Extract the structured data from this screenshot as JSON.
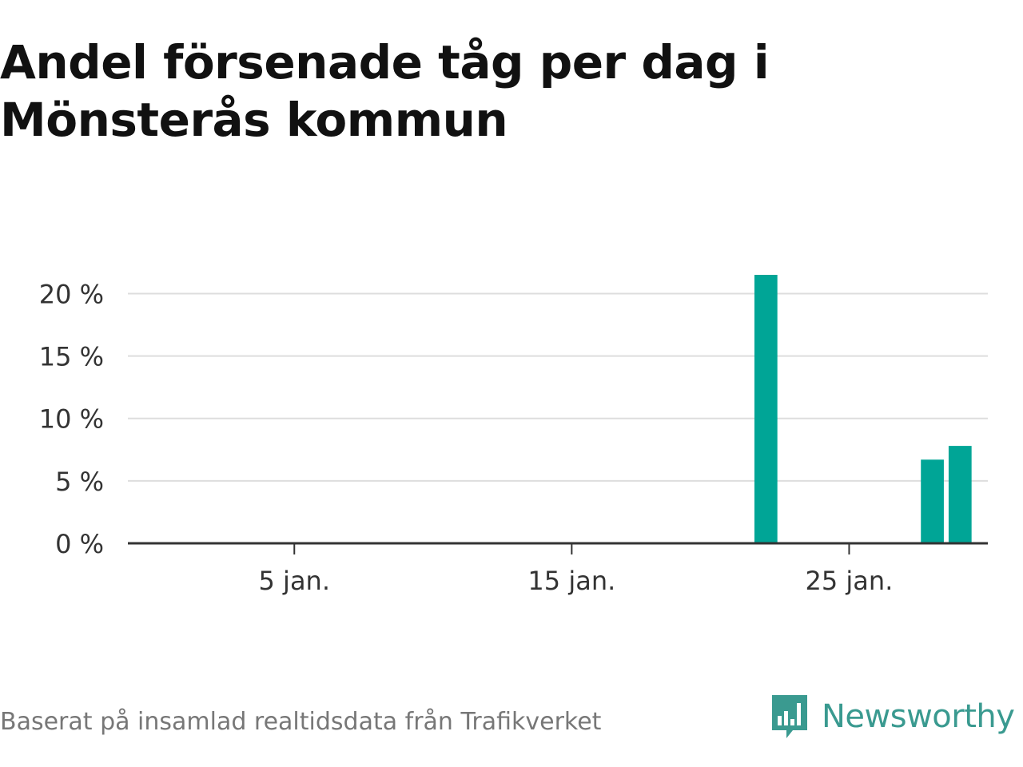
{
  "title_line1": "Andel försenade tåg per dag i",
  "title_line2": "Mönsterås kommun",
  "source": "Baserat på insamlad realtidsdata från Trafikverket",
  "brand": {
    "name": "Newsworthy",
    "icon": "newsworthy-logo-icon",
    "color": "#3a9a90"
  },
  "chart_data": {
    "type": "bar",
    "x_unit": "day of January",
    "x_ticks": [
      5,
      15,
      25
    ],
    "x_tick_labels": [
      "5 jan.",
      "15 jan.",
      "25 jan."
    ],
    "xlim": [
      -1,
      30
    ],
    "ylim": [
      0,
      21.5
    ],
    "y_ticks": [
      0,
      5,
      10,
      15,
      20
    ],
    "y_tick_labels": [
      "0 %",
      "5 %",
      "10 %",
      "15 %",
      "20 %"
    ],
    "bars": [
      {
        "x": 22,
        "value": 21.5
      },
      {
        "x": 28,
        "value": 6.7
      },
      {
        "x": 29,
        "value": 7.8
      }
    ],
    "bar_color": "#00a596",
    "grid": true
  }
}
